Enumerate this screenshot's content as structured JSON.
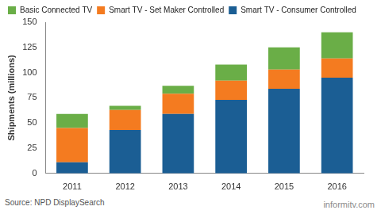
{
  "chart_data": {
    "type": "bar",
    "y_label": "Shipments (millions)",
    "categories": [
      "2011",
      "2012",
      "2013",
      "2014",
      "2015",
      "2016"
    ],
    "series": [
      {
        "name": "Smart TV - Consumer Controlled",
        "color": "#1b5e94",
        "values": [
          11,
          43,
          59,
          73,
          84,
          95
        ]
      },
      {
        "name": "Smart TV - Set Maker Controlled",
        "color": "#f47b20",
        "values": [
          34,
          20,
          20,
          19,
          19,
          19
        ]
      },
      {
        "name": "Basic Connected TV",
        "color": "#6aae47",
        "values": [
          14,
          4,
          8,
          16,
          22,
          26
        ]
      }
    ],
    "stacked": true,
    "ylim": [
      0,
      150
    ],
    "yticks": [
      0,
      25,
      50,
      75,
      100,
      125,
      150
    ],
    "grid": false,
    "legend": "upper left",
    "source": "Source: NPD DisplaySearch",
    "credit": "informitv.com"
  }
}
